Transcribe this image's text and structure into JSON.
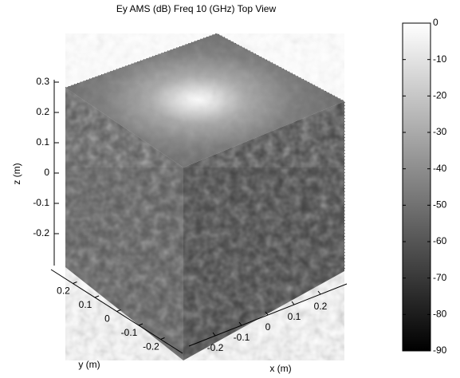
{
  "chart_data": {
    "type": "surface3d",
    "title": "Ey AMS (dB) Freq 10 (GHz) Top View",
    "xlabel": "x (m)",
    "ylabel": "y (m)",
    "zlabel": "z (m)",
    "xlim": [
      -0.3,
      0.3
    ],
    "xticks": [
      -0.2,
      -0.1,
      0,
      0.1,
      0.2
    ],
    "ylim": [
      -0.3,
      0.3
    ],
    "yticks": [
      0.2,
      0.1,
      0,
      -0.1,
      -0.2
    ],
    "zlim": [
      -0.3,
      0.3
    ],
    "zticks": [
      0.3,
      0.2,
      0.1,
      0,
      -0.1,
      -0.2
    ],
    "colormap": "gray",
    "colorbar": {
      "clim": [
        -90,
        0
      ],
      "ticks": [
        0,
        -10,
        -20,
        -30,
        -40,
        -50,
        -60,
        -70,
        -80,
        -90
      ]
    }
  }
}
